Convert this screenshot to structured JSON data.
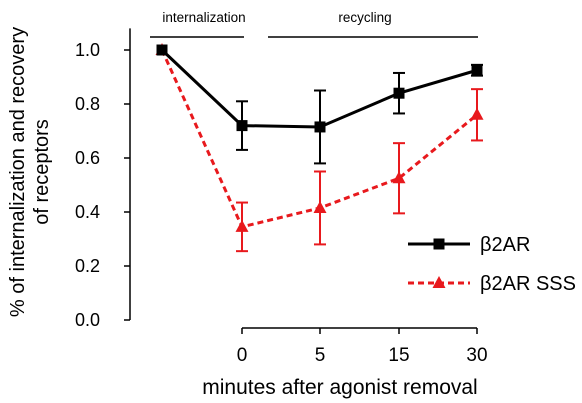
{
  "chart_data": {
    "type": "line",
    "categories": [
      "",
      "0",
      "5",
      "15",
      "30"
    ],
    "ylim": [
      0,
      1.08
    ],
    "yticks": [
      0.0,
      0.2,
      0.4,
      0.6,
      0.8,
      1.0
    ],
    "ytick_labels": [
      "0.0",
      "0.2",
      "0.4",
      "0.6",
      "0.8",
      "1.0"
    ],
    "xlabel": "minutes after agonist removal",
    "ylabel_line1": "% of internalization and recovery",
    "ylabel_line2": "of receptors",
    "series": [
      {
        "name": "β2AR",
        "color": "#000000",
        "marker": "square",
        "dash": "solid",
        "values": [
          1.0,
          0.72,
          0.715,
          0.84,
          0.925
        ],
        "errors": [
          0.0,
          0.09,
          0.135,
          0.075,
          0.02
        ]
      },
      {
        "name": "β2AR SSS",
        "color": "#e8191d",
        "marker": "triangle",
        "dash": "dashed",
        "values": [
          1.0,
          0.345,
          0.415,
          0.525,
          0.76
        ],
        "errors": [
          0.0,
          0.09,
          0.135,
          0.13,
          0.095
        ]
      }
    ],
    "annotations": [
      {
        "text": "internalization",
        "from_index": 0,
        "to_index": 1
      },
      {
        "text": "recycling",
        "from_index": 1,
        "to_index": 4
      }
    ],
    "legend_position": "bottom-right",
    "grid": false
  }
}
